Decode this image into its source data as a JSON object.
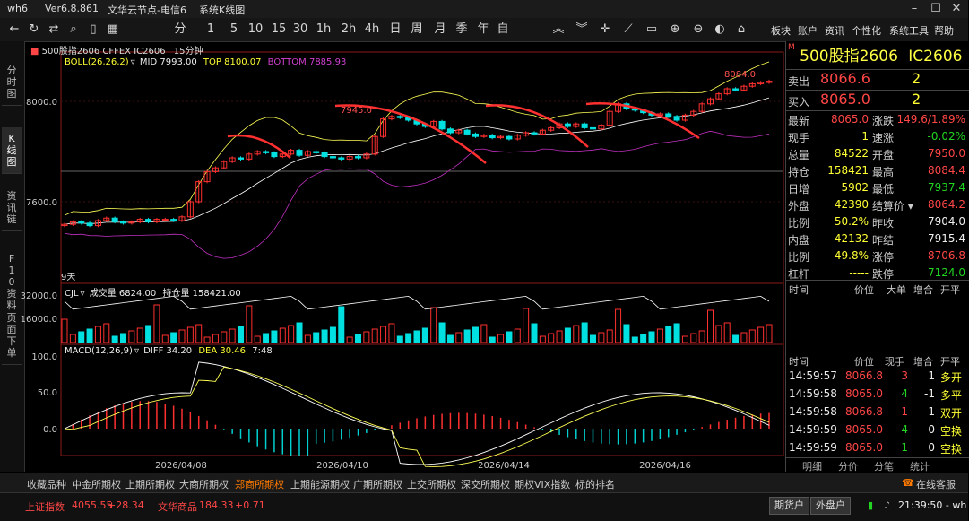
{
  "titlebar": {
    "app": "wh6",
    "version": "Ver6.8.861",
    "server": "文华云节点-电信6",
    "view": "系统K线图"
  },
  "toolbar": {
    "periods": [
      "分",
      "1",
      "5",
      "10",
      "15",
      "30",
      "1h",
      "2h",
      "4h",
      "日",
      "周",
      "月",
      "季",
      "年",
      "自"
    ],
    "right_menu": [
      "板块",
      "账户",
      "资讯",
      "个性化",
      "系统工具",
      "帮助"
    ]
  },
  "left_tabs": [
    "分时图",
    "K线图",
    "资讯链",
    "F10资料",
    "页面下单"
  ],
  "chart_header": {
    "symbol": "500股指2606",
    "exchange": "CFFEX IC2606",
    "period": "15分钟"
  },
  "boll_label": {
    "name": "BOLL(26,26,2)",
    "mid_lbl": "MID",
    "mid": "7993.00",
    "top_lbl": "TOP",
    "top": "8100.07",
    "bottom_lbl": "BOTTOM",
    "bottom": "7885.93"
  },
  "price_axis": [
    "8000.0",
    "7600.0"
  ],
  "annotations": {
    "hi": "8084.0",
    "mark": "7945.0",
    "days": "9天"
  },
  "volume_label": {
    "name": "CJL",
    "vol_lbl": "成交量",
    "vol": "6824.00",
    "oi_lbl": "持仓量",
    "oi": "158421.00"
  },
  "volume_axis": [
    "32000.0",
    "16000.0"
  ],
  "macd_label": {
    "name": "MACD(12,26,9)",
    "diff_lbl": "DIFF",
    "diff": "34.20",
    "dea_lbl": "DEA",
    "dea": "30.46",
    "macd": "7:48"
  },
  "macd_axis": [
    "100.0",
    "50.0",
    "0.0"
  ],
  "date_axis": [
    "2026/04/08",
    "2026/04/10",
    "2026/04/14",
    "2026/04/16"
  ],
  "chart_data": {
    "type": "candlestick",
    "candles_approx": [
      7510,
      7520,
      7515,
      7505,
      7525,
      7535,
      7520,
      7515,
      7520,
      7530,
      7520,
      7530,
      7530,
      7525,
      7540,
      7600,
      7680,
      7720,
      7735,
      7760,
      7775,
      7770,
      7790,
      7800,
      7795,
      7780,
      7790,
      7805,
      7785,
      7800,
      7795,
      7780,
      7775,
      7770,
      7780,
      7775,
      7790,
      7860,
      7930,
      7940,
      7935,
      7925,
      7910,
      7900,
      7920,
      7890,
      7875,
      7885,
      7870,
      7860,
      7865,
      7855,
      7860,
      7850,
      7865,
      7875,
      7870,
      7885,
      7895,
      7910,
      7900,
      7910,
      7895,
      7890,
      7905,
      7960,
      7990,
      7970,
      7965,
      7955,
      7945,
      7950,
      7940,
      7925,
      7945,
      7960,
      7990,
      8010,
      8030,
      8050,
      8045,
      8060,
      8070,
      8075,
      8080
    ]
  },
  "quote": {
    "name": "500股指2606",
    "code": "IC2606",
    "sell_lbl": "卖出",
    "sell_price": "8066.6",
    "sell_vol": "2",
    "buy_lbl": "买入",
    "buy_price": "8065.0",
    "buy_vol": "2",
    "rows": [
      {
        "l1": "最新",
        "v1": "8065.0",
        "l2": "涨跌",
        "v2": "149.6/1.89%"
      },
      {
        "l1": "现手",
        "v1": "1",
        "l2": "速涨",
        "v2": "-0.02%"
      },
      {
        "l1": "总量",
        "v1": "84522",
        "l2": "开盘",
        "v2": "7950.0"
      },
      {
        "l1": "持仓",
        "v1": "158421",
        "l2": "最高",
        "v2": "8084.4"
      },
      {
        "l1": "日增",
        "v1": "5902",
        "l2": "最低",
        "v2": "7937.4"
      },
      {
        "l1": "外盘",
        "v1": "42390",
        "l2": "结算价",
        "v2": "8064.2"
      },
      {
        "l1": "比例",
        "v1": "50.2%",
        "l2": "昨收",
        "v2": "7904.0"
      },
      {
        "l1": "内盘",
        "v1": "42132",
        "l2": "昨结",
        "v2": "7915.4"
      },
      {
        "l1": "比例",
        "v1": "49.8%",
        "l2": "涨停",
        "v2": "8706.8"
      },
      {
        "l1": "杠杆",
        "v1": "-----",
        "l2": "跌停",
        "v2": "7124.0"
      }
    ],
    "tick_header": [
      "时间",
      "价位",
      "大单",
      "增合",
      "开平"
    ],
    "tick_header2": [
      "时间",
      "价位",
      "现手",
      "增合",
      "开平"
    ],
    "ticks": [
      {
        "t": "14:59:57",
        "p": "8066.8",
        "v": "3",
        "d": "1",
        "o": "多开"
      },
      {
        "t": "14:59:58",
        "p": "8065.0",
        "v": "4",
        "d": "-1",
        "o": "多平"
      },
      {
        "t": "14:59:58",
        "p": "8066.8",
        "v": "1",
        "d": "1",
        "o": "双开"
      },
      {
        "t": "14:59:59",
        "p": "8065.0",
        "v": "4",
        "d": "0",
        "o": "空换"
      },
      {
        "t": "14:59:59",
        "p": "8065.0",
        "v": "1",
        "d": "0",
        "o": "空换"
      }
    ],
    "sub_tabs": [
      "明细",
      "分价",
      "分笔",
      "统计"
    ]
  },
  "bottom_tabs": [
    "收藏品种",
    "中金所期权",
    "上期所期权",
    "大商所期权",
    "郑商所期权",
    "上期能源期权",
    "广期所期权",
    "上交所期权",
    "深交所期权",
    "期权VIX指数",
    "标的排名"
  ],
  "bottom_right": "在线客服",
  "status": {
    "idx1_name": "上证指数",
    "idx1_val": "4055.55",
    "idx1_chg": "+28.34",
    "idx2_name": "文华商品",
    "idx2_val": "184.33",
    "idx2_chg": "+0.71",
    "btn1": "期货户",
    "btn2": "外盘户",
    "clock": "21:39:50 - wh"
  }
}
